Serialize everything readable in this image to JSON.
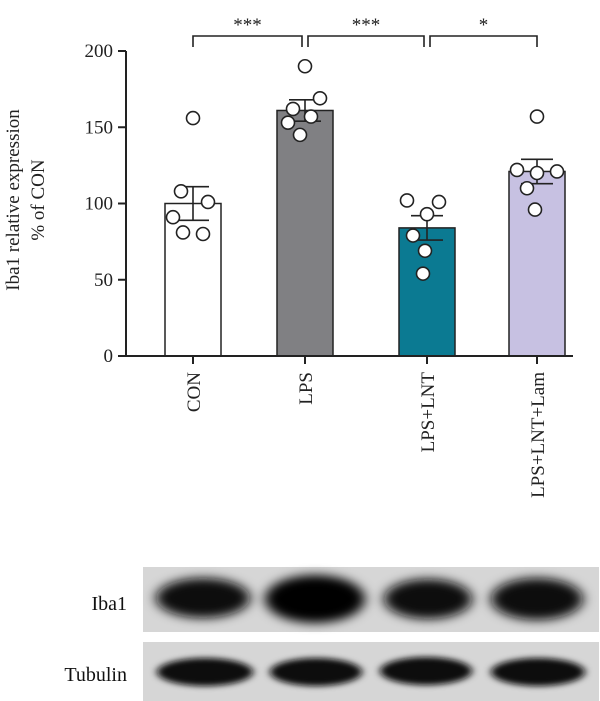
{
  "chart_data": {
    "type": "bar",
    "ylabel_lines": [
      "Iba1 relative expression",
      "% of CON"
    ],
    "categories": [
      "CON",
      "LPS",
      "LPS+LNT",
      "LPS+LNT+Lam"
    ],
    "values": [
      100,
      161,
      84,
      121
    ],
    "errors": [
      11,
      7,
      8,
      8
    ],
    "colors": [
      "#ffffff",
      "#808083",
      "#0b7a92",
      "#c7c1e2"
    ],
    "points": [
      [
        156,
        108,
        101,
        91,
        81,
        80
      ],
      [
        190,
        169,
        162,
        157,
        153,
        145
      ],
      [
        102,
        101,
        93,
        79,
        69,
        54
      ],
      [
        157,
        122,
        121,
        120,
        110,
        96
      ]
    ],
    "ylim": [
      0,
      200
    ],
    "yticks": [
      0,
      50,
      100,
      150,
      200
    ],
    "significance": [
      {
        "from": 0,
        "to": 1,
        "label": "***"
      },
      {
        "from": 1,
        "to": 2,
        "label": "***"
      },
      {
        "from": 2,
        "to": 3,
        "label": "*"
      }
    ],
    "grid": false
  },
  "blot": {
    "rows": [
      "Iba1",
      "Tubulin"
    ]
  }
}
